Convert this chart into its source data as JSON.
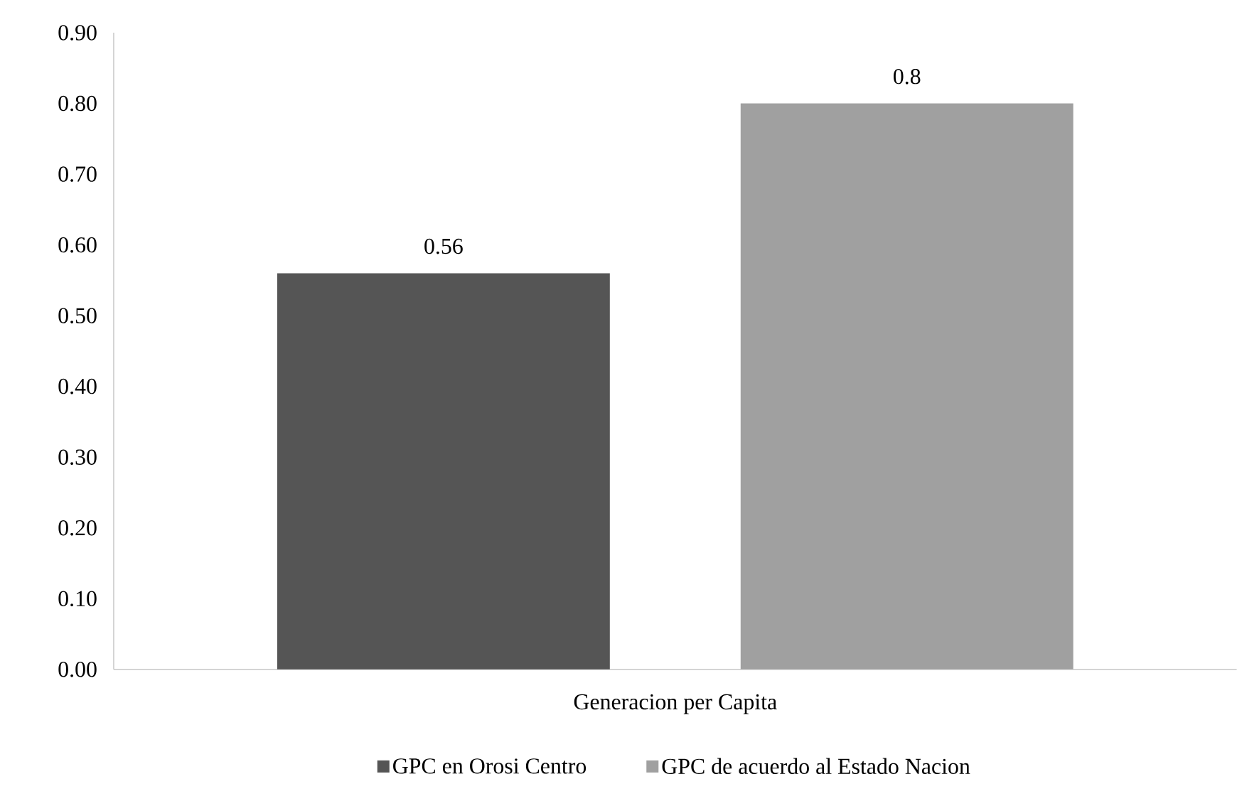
{
  "chart_data": {
    "type": "bar",
    "categories": [
      "Generacion per Capita"
    ],
    "series": [
      {
        "name": "GPC en Orosi Centro",
        "color": "#555555",
        "values": [
          0.56
        ]
      },
      {
        "name": "GPC de acuerdo al Estado Nacion",
        "color": "#a0a0a0",
        "values": [
          0.8
        ]
      }
    ],
    "ylim": [
      0,
      0.9
    ],
    "yticks": [
      {
        "value": 0,
        "label": "0.00"
      },
      {
        "value": 0.1,
        "label": "0.10"
      },
      {
        "value": 0.2,
        "label": "0.20"
      },
      {
        "value": 0.3,
        "label": "0.30"
      },
      {
        "value": 0.4,
        "label": "0.40"
      },
      {
        "value": 0.5,
        "label": "0.50"
      },
      {
        "value": 0.6,
        "label": "0.60"
      },
      {
        "value": 0.7,
        "label": "0.70"
      },
      {
        "value": 0.8,
        "label": "0.80"
      },
      {
        "value": 0.9,
        "label": "0.90"
      }
    ],
    "data_labels": true,
    "legend": "bottom",
    "grid": false
  }
}
